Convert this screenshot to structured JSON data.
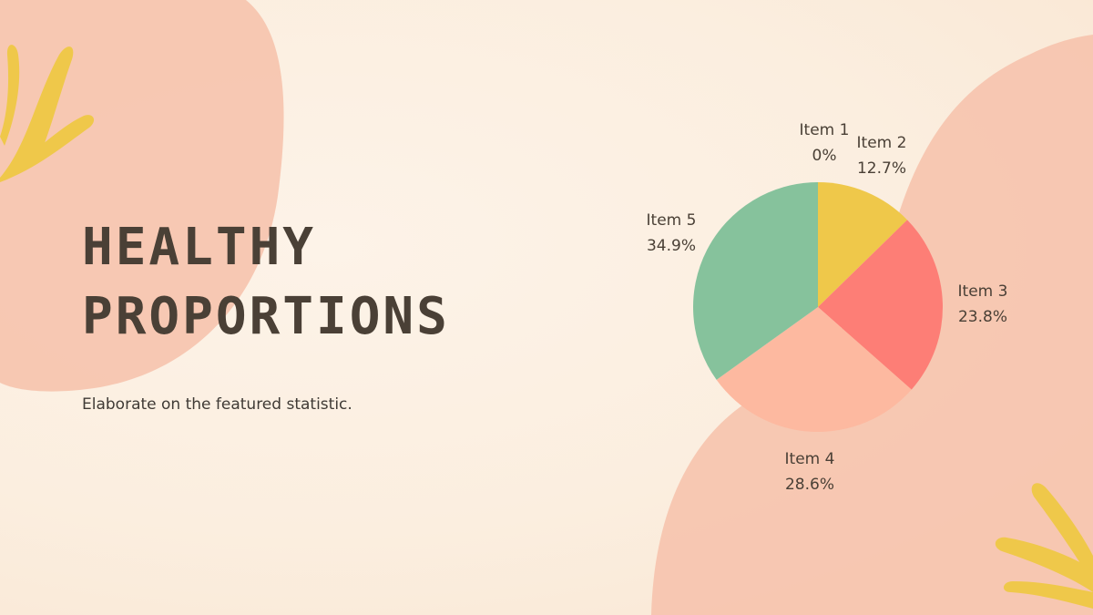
{
  "slide": {
    "title_line1": "HEALTHY",
    "title_line2": "PROPORTIONS",
    "subtitle": "Elaborate on the featured statistic."
  },
  "colors": {
    "background": "#fbeedf",
    "blob": "#f6c3ad",
    "leaf": "#efc84a",
    "text": "#4a4036"
  },
  "chart_data": {
    "type": "pie",
    "title": "",
    "slices": [
      {
        "label": "Item 1",
        "value": 0,
        "value_label": "0%",
        "color": "#efc84a"
      },
      {
        "label": "Item 2",
        "value": 12.7,
        "value_label": "12.7%",
        "color": "#efc84a"
      },
      {
        "label": "Item 3",
        "value": 23.8,
        "value_label": "23.8%",
        "color": "#fd7e76"
      },
      {
        "label": "Item 4",
        "value": 28.6,
        "value_label": "28.6%",
        "color": "#fdb9a0"
      },
      {
        "label": "Item 5",
        "value": 34.9,
        "value_label": "34.9%",
        "color": "#86c29c"
      }
    ],
    "start_angle": "12 o'clock",
    "direction": "clockwise",
    "legend": "none"
  }
}
